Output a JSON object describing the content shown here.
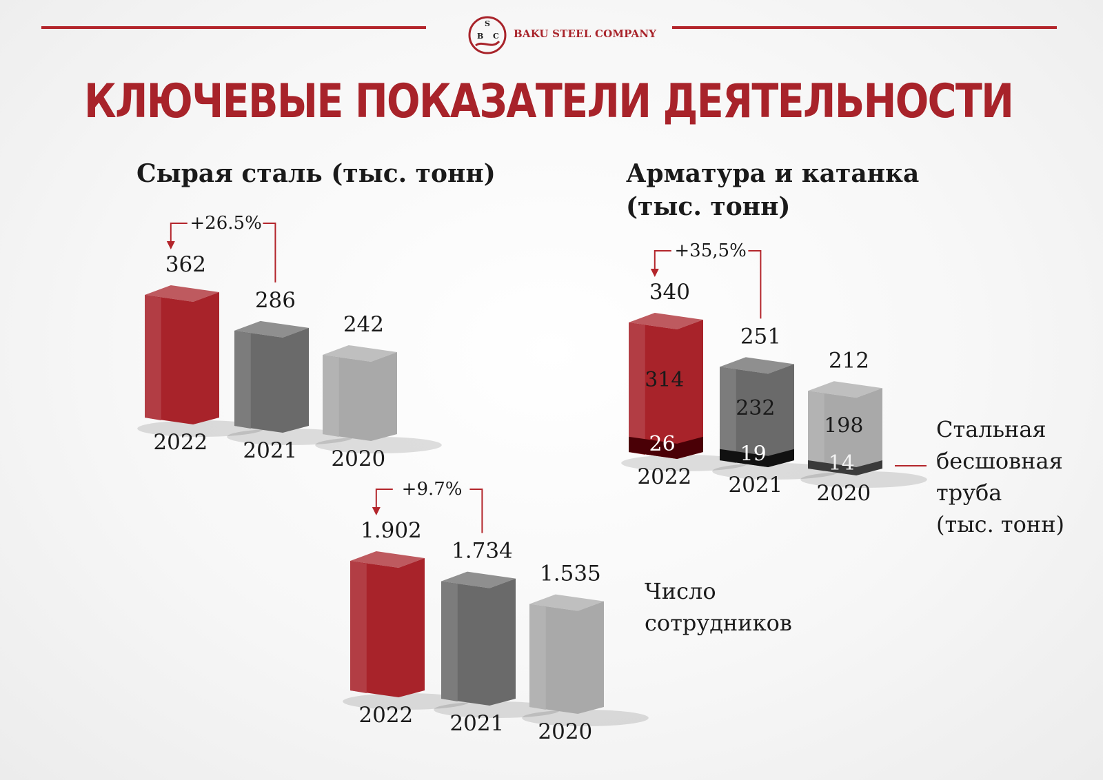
{
  "header": {
    "brand": "BAKU STEEL COMPANY",
    "logo_letters": [
      "B",
      "S",
      "C"
    ],
    "title": "КЛЮЧЕВЫЕ ПОКАЗАТЕЛИ ДЕЯТЕЛЬНОСТИ"
  },
  "colors": {
    "accent": "#b3252b",
    "bar_2022": "#a8232a",
    "bar_2021": "#6a6a6a",
    "bar_2020": "#a9a9a9",
    "pipe_2022": "#4a0006",
    "pipe_2021": "#111111",
    "pipe_2020": "#3a3a3a"
  },
  "labels": {
    "crude_steel_title": "Сырая сталь (тыс. тонн)",
    "rebar_title_line1": "Арматура и катанка",
    "rebar_title_line2": "(тыс. тонн)",
    "seamless_pipe_label": "Стальная\nбесшовная\nтруба\n(тыс. тонн)",
    "employees_label": "Число\nсотрудников"
  },
  "chart_data": [
    {
      "type": "bar",
      "title": "Сырая сталь (тыс. тонн)",
      "categories": [
        "2022",
        "2021",
        "2020"
      ],
      "values": [
        362,
        286,
        242
      ],
      "value_labels": [
        "362",
        "286",
        "242"
      ],
      "change": "+26.5%"
    },
    {
      "type": "bar",
      "title": "Арматура и катанка (тыс. тонн)",
      "categories": [
        "2022",
        "2021",
        "2020"
      ],
      "values": [
        340,
        251,
        212
      ],
      "value_labels": [
        "340",
        "251",
        "212"
      ],
      "change": "+35,5%",
      "series": [
        {
          "name": "Арматура и катанка",
          "values": [
            314,
            232,
            198
          ]
        },
        {
          "name": "Стальная бесшовная труба",
          "values": [
            26,
            19,
            14
          ]
        }
      ]
    },
    {
      "type": "bar",
      "title": "Число сотрудников",
      "categories": [
        "2022",
        "2021",
        "2020"
      ],
      "values": [
        1902,
        1734,
        1535
      ],
      "value_labels": [
        "1.902",
        "1.734",
        "1.535"
      ],
      "change": "+9.7%"
    }
  ]
}
